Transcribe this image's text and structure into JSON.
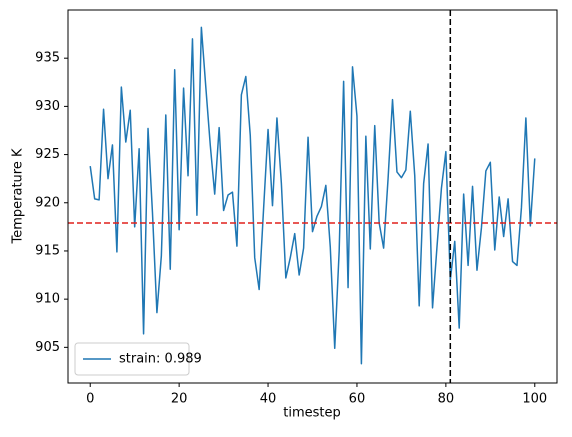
{
  "chart_data": {
    "type": "line",
    "xlabel": "timestep",
    "ylabel": "Temperature K",
    "x": [
      0,
      1,
      2,
      3,
      4,
      5,
      6,
      7,
      8,
      9,
      10,
      11,
      12,
      13,
      14,
      15,
      16,
      17,
      18,
      19,
      20,
      21,
      22,
      23,
      24,
      25,
      26,
      27,
      28,
      29,
      30,
      31,
      32,
      33,
      34,
      35,
      36,
      37,
      38,
      39,
      40,
      41,
      42,
      43,
      44,
      45,
      46,
      47,
      48,
      49,
      50,
      51,
      52,
      53,
      54,
      55,
      56,
      57,
      58,
      59,
      60,
      61,
      62,
      63,
      64,
      65,
      66,
      67,
      68,
      69,
      70,
      71,
      72,
      73,
      74,
      75,
      76,
      77,
      78,
      79,
      80,
      81,
      82,
      83,
      84,
      85,
      86,
      87,
      88,
      89,
      90,
      91,
      92,
      93,
      94,
      95,
      96,
      97,
      98,
      99,
      100
    ],
    "series": [
      {
        "name": "strain: 0.989",
        "color": "#1f77b4",
        "values": [
          923.8,
          920.4,
          920.3,
          929.7,
          922.5,
          926,
          914.9,
          932,
          926.3,
          929.6,
          917.5,
          925.6,
          906.4,
          927.7,
          919,
          908.6,
          914.5,
          929.1,
          913.1,
          933.8,
          917.2,
          931.9,
          922.8,
          937,
          918.7,
          938.2,
          932,
          926,
          920.9,
          927.8,
          919.2,
          920.8,
          921.1,
          915.5,
          931.2,
          933.1,
          927,
          914.3,
          911,
          919.4,
          927.6,
          919.7,
          928.8,
          922,
          912.2,
          914.3,
          916.8,
          912.5,
          915.3,
          926.8,
          917,
          918.6,
          919.6,
          921.8,
          915.4,
          904.9,
          915,
          932.6,
          911.2,
          934.1,
          929,
          903.3,
          926.9,
          915.2,
          928,
          917.9,
          915.3,
          922.5,
          930.7,
          923.2,
          922.6,
          923.4,
          929.5,
          922.8,
          909.3,
          922,
          926.1,
          909.1,
          915.4,
          921.5,
          925.3,
          912,
          916,
          907,
          920.9,
          913.5,
          921.7,
          913,
          917.4,
          923.3,
          924.2,
          915.1,
          920.6,
          916.5,
          920.4,
          913.9,
          913.5,
          919.5,
          928.8,
          917.6,
          924.6
        ]
      }
    ],
    "hlines": [
      {
        "value": 917.9,
        "color": "#e0201b"
      }
    ],
    "vlines": [
      {
        "value": 81,
        "color": "#000000"
      }
    ],
    "xlim": [
      -5,
      105
    ],
    "ylim": [
      901.3,
      940
    ],
    "xticks": [
      0,
      20,
      40,
      60,
      80,
      100
    ],
    "yticks": [
      905,
      910,
      915,
      920,
      925,
      930,
      935
    ],
    "legend": "lower left",
    "grid": false
  }
}
